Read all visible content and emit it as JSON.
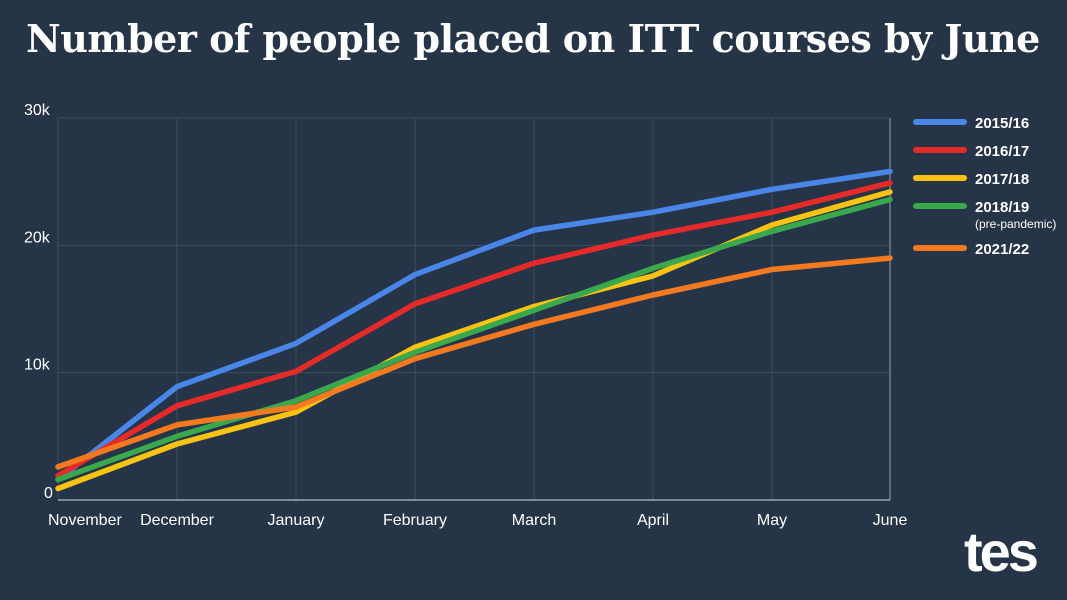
{
  "title": "Number of people placed on ITT courses by June",
  "logo": "tes",
  "colors": {
    "background": "#253447",
    "grid": "#3d4c5e",
    "axis": "#9aa5b1",
    "text": "#ffffff"
  },
  "chart_data": {
    "type": "line",
    "title": "Number of people placed on ITT courses by June",
    "xlabel": "",
    "ylabel": "",
    "categories": [
      "November",
      "December",
      "January",
      "February",
      "March",
      "April",
      "May",
      "June"
    ],
    "ylim": [
      0,
      30000
    ],
    "yticks": [
      {
        "value": 0,
        "label": "0"
      },
      {
        "value": 10000,
        "label": "10k"
      },
      {
        "value": 20000,
        "label": "20k"
      },
      {
        "value": 30000,
        "label": "30k"
      }
    ],
    "grid": true,
    "legend_position": "right",
    "series": [
      {
        "name": "2015/16",
        "sublabel": "",
        "color": "#4a86e8",
        "values": [
          1600,
          8900,
          12300,
          17700,
          21200,
          22600,
          24400,
          25800
        ]
      },
      {
        "name": "2016/17",
        "sublabel": "",
        "color": "#e52a2a",
        "values": [
          1900,
          7400,
          10100,
          15400,
          18600,
          20800,
          22600,
          24900
        ]
      },
      {
        "name": "2017/18",
        "sublabel": "",
        "color": "#f9c411",
        "values": [
          900,
          4400,
          6900,
          12000,
          15200,
          17600,
          21600,
          24200
        ]
      },
      {
        "name": "2018/19",
        "sublabel": "(pre-pandemic)",
        "color": "#3aa84d",
        "values": [
          1600,
          5000,
          7800,
          11600,
          14900,
          18200,
          21100,
          23600
        ]
      },
      {
        "name": "2021/22",
        "sublabel": "",
        "color": "#f57a1f",
        "values": [
          2600,
          5900,
          7300,
          11100,
          13800,
          16100,
          18100,
          19000
        ]
      }
    ]
  }
}
